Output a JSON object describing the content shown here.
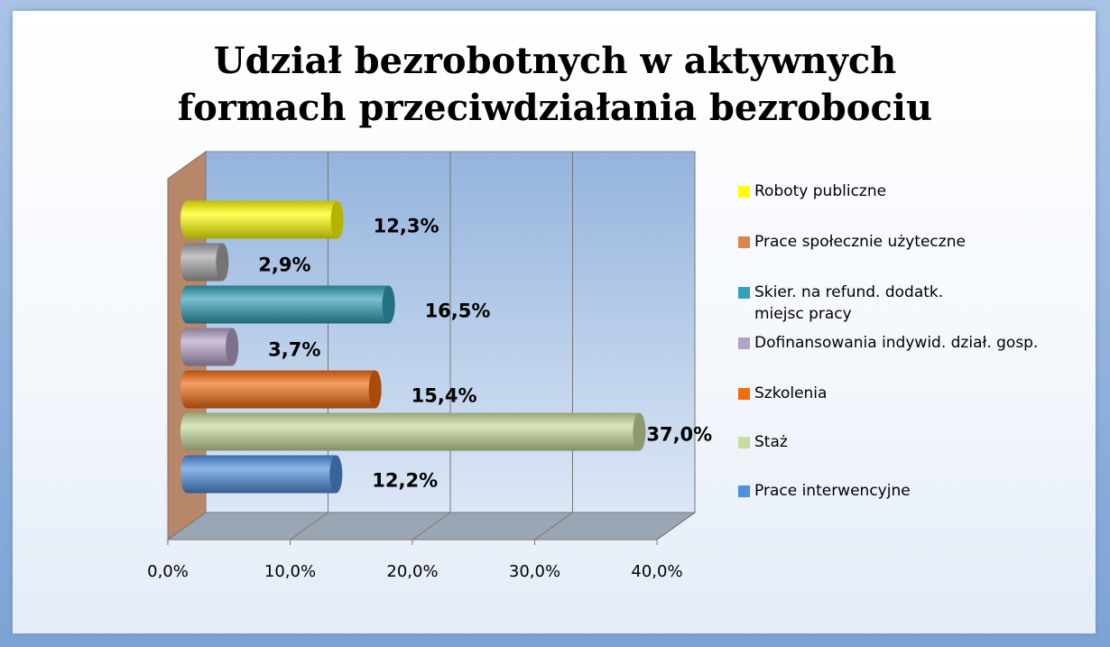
{
  "chart_data": {
    "type": "bar3d",
    "title": "Udział bezrobotnych w aktywnych formach przeciwdziałania bezrobociu",
    "series": [
      {
        "name": "Roboty publiczne",
        "color": "#ffff00",
        "values": [
          12.3
        ],
        "value_labels": [
          "12,3%"
        ]
      },
      {
        "name": "Prace społecznie użyteczne",
        "color": "#a6a6a6",
        "legend_color": "#d9864a",
        "values": [
          2.9
        ],
        "value_labels": [
          "2,9%"
        ]
      },
      {
        "name": "Skier. na refund. dodatk. miejsc pracy",
        "color": "#31a0b8",
        "values": [
          16.5
        ],
        "value_labels": [
          "16,5%"
        ]
      },
      {
        "name": "Dofinansowania indywid. dział. gosp.",
        "color": "#b3a2c7",
        "values": [
          3.7
        ],
        "value_labels": [
          "3,7%"
        ]
      },
      {
        "name": "Szkolenia",
        "color": "#f26b0f",
        "values": [
          15.4
        ],
        "value_labels": [
          "15,4%"
        ]
      },
      {
        "name": "Staż",
        "color": "#c8dc9c",
        "values": [
          37.0
        ],
        "value_labels": [
          "37,0%"
        ]
      },
      {
        "name": "Prace interwencyjne",
        "color": "#4f8fe0",
        "values": [
          12.2
        ],
        "value_labels": [
          "12,2%"
        ]
      }
    ],
    "xlim": [
      0,
      40
    ],
    "xticks": [
      {
        "value": 0,
        "label": "0,0%"
      },
      {
        "value": 10,
        "label": "10,0%"
      },
      {
        "value": 20,
        "label": "20,0%"
      },
      {
        "value": 30,
        "label": "30,0%"
      },
      {
        "value": 40,
        "label": "40,0%"
      }
    ],
    "grid": true,
    "legend": "right"
  }
}
